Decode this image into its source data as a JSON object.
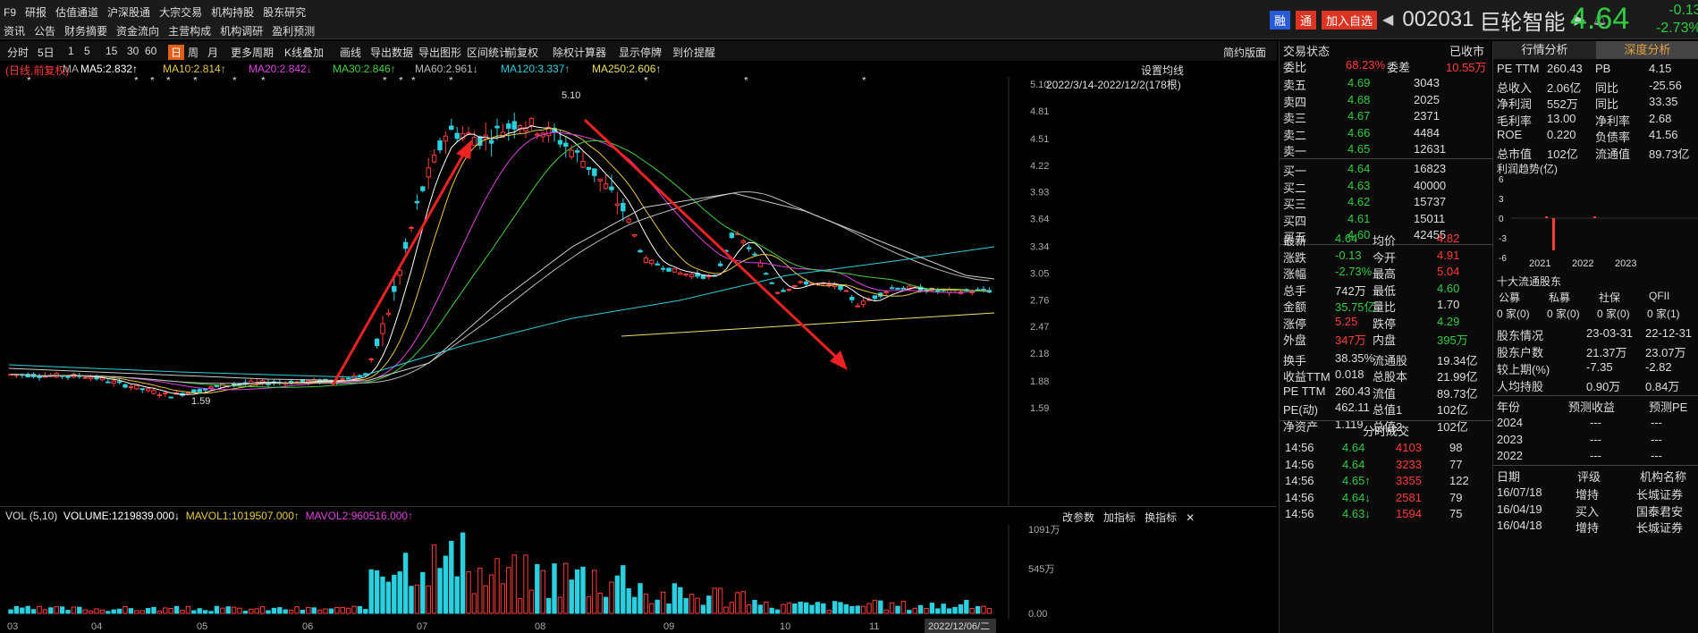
{
  "menu_row1": [
    "F9",
    "研报",
    "估值通道",
    "沪深股通",
    "大宗交易",
    "机构持股",
    "股东研究"
  ],
  "menu_row2": [
    "资讯",
    "公告",
    "财务摘要",
    "资金流向",
    "主营构成",
    "机构调研",
    "盈利预测"
  ],
  "stock": {
    "badge1": "融",
    "badge2": "通",
    "add": "加入自选",
    "code": "002031",
    "name": "巨轮智能",
    "price": "4.64",
    "chg": "-0.13",
    "pct": "-2.73%"
  },
  "toolbar": [
    "分时",
    "5日",
    "1",
    "5",
    "15",
    "30",
    "60",
    "日",
    "周",
    "月",
    "更多周期",
    "K线叠加",
    "画线",
    "导出数据",
    "导出图形",
    "区间统计",
    "前复权",
    "除权计算器",
    "显示停牌",
    "到价提醒"
  ],
  "toolbar_right": "简约版面",
  "legend": {
    "mode": "(日线,前复权)",
    "ma": "MA",
    "ma5": "MA5:2.832↑",
    "ma10": "MA10:2.814↑",
    "ma20": "MA20:2.842↓",
    "ma30": "MA30:2.846↑",
    "ma60": "MA60:2.961↓",
    "ma120": "MA120:3.337↑",
    "ma250": "MA250:2.606↑"
  },
  "settings": "设置均线",
  "range": "2022/3/14-2022/12/2(178根)",
  "price_axis": [
    "5.10",
    "4.81",
    "4.51",
    "4.22",
    "3.93",
    "3.64",
    "3.34",
    "3.05",
    "2.76",
    "2.47",
    "2.18",
    "1.88",
    "1.59"
  ],
  "high_label": "5.10",
  "low_label": "1.59",
  "month_axis": [
    "03",
    "04",
    "05",
    "06",
    "07",
    "08",
    "09",
    "10",
    "11"
  ],
  "date_label": "2022/12/06/二",
  "vol_legend": {
    "vol": "VOL (5,10)",
    "volume": "VOLUME:1219839.000↓",
    "mavol1": "MAVOL1:1019507.000↑",
    "mavol2": "MAVOL2:960516.000↑"
  },
  "vol_buttons": [
    "改参数",
    "加指标",
    "换指标"
  ],
  "vol_axis": [
    "1091万",
    "545万",
    "0.00"
  ],
  "trade_status": "交易状态",
  "closed": "已收市",
  "weibi": {
    "label": "委比",
    "v": "68.23%",
    "label2": "委差",
    "v2": "10.55万"
  },
  "asks": [
    [
      "卖五",
      "4.69",
      "3043"
    ],
    [
      "卖四",
      "4.68",
      "2025"
    ],
    [
      "卖三",
      "4.67",
      "2371"
    ],
    [
      "卖二",
      "4.66",
      "4484"
    ],
    [
      "卖一",
      "4.65",
      "12631"
    ]
  ],
  "bids": [
    [
      "买一",
      "4.64",
      "16823"
    ],
    [
      "买二",
      "4.63",
      "40000"
    ],
    [
      "买三",
      "4.62",
      "15737"
    ],
    [
      "买四",
      "4.61",
      "15011"
    ],
    [
      "买五",
      "4.60",
      "42455"
    ]
  ],
  "quote": [
    [
      "最新",
      "4.64",
      "均价",
      "4.82"
    ],
    [
      "涨跌",
      "-0.13",
      "今开",
      "4.91"
    ],
    [
      "涨幅",
      "-2.73%",
      "最高",
      "5.04"
    ],
    [
      "总手",
      "742万",
      "最低",
      "4.60"
    ],
    [
      "金额",
      "35.75亿",
      "量比",
      "1.70"
    ],
    [
      "涨停",
      "5.25",
      "跌停",
      "4.29"
    ],
    [
      "外盘",
      "347万",
      "内盘",
      "395万"
    ],
    [
      "换手",
      "38.35%",
      "流通股",
      "19.34亿"
    ],
    [
      "收益TTM",
      "0.018",
      "总股本",
      "21.99亿"
    ],
    [
      "PE TTM",
      "260.43",
      "流值",
      "89.73亿"
    ],
    [
      "PE(动)",
      "462.11",
      "总值1",
      "102亿"
    ],
    [
      "净资产",
      "1.119",
      "总值2",
      "102亿"
    ]
  ],
  "ticks_title": "分时成交",
  "ticks": [
    [
      "14:56",
      "4.64",
      "4103",
      "98"
    ],
    [
      "14:56",
      "4.64",
      "3233",
      "77"
    ],
    [
      "14:56",
      "4.65↑",
      "3355",
      "122"
    ],
    [
      "14:56",
      "4.64↓",
      "2581",
      "79"
    ],
    [
      "14:56",
      "4.63↓",
      "1594",
      "75"
    ]
  ],
  "tabs": {
    "a": "行情分析",
    "b": "深度分析"
  },
  "fin": [
    [
      "PE TTM",
      "260.43",
      "PB",
      "4.15"
    ],
    [
      "总收入",
      "2.06亿",
      "同比",
      "-25.56"
    ],
    [
      "净利润",
      "552万",
      "同比",
      "33.35"
    ],
    [
      "毛利率",
      "13.00",
      "净利率",
      "2.68"
    ],
    [
      "ROE",
      "0.220",
      "负债率",
      "41.56"
    ],
    [
      "总市值",
      "102亿",
      "流通值",
      "89.73亿"
    ]
  ],
  "profit_title": "利润趋势(亿)",
  "profit_axis": [
    "6",
    "3",
    "0",
    "-3",
    "-6"
  ],
  "profit_years": [
    "2021",
    "2022",
    "2023"
  ],
  "holders_title": "十大流通股东",
  "holders_hdr": [
    "公募",
    "私募",
    "社保",
    "QFII"
  ],
  "holders_val": [
    "0 家(0)",
    "0 家(0)",
    "0 家(0)",
    "0 家(1)"
  ],
  "sh": [
    [
      "股东情况",
      "23-03-31",
      "22-12-31"
    ],
    [
      "股东户数",
      "21.37万",
      "23.07万"
    ],
    [
      "较上期(%)",
      "-7.35",
      "-2.82"
    ],
    [
      "人均持股",
      "0.90万",
      "0.84万"
    ]
  ],
  "forecast_hdr": [
    "年份",
    "预测收益",
    "预测PE"
  ],
  "forecast": [
    [
      "2024",
      "---",
      "---"
    ],
    [
      "2023",
      "---",
      "---"
    ],
    [
      "2022",
      "---",
      "---"
    ]
  ],
  "rating_hdr": [
    "日期",
    "评级",
    "机构名称"
  ],
  "ratings": [
    [
      "16/07/18",
      "增持",
      "长城证券"
    ],
    [
      "16/04/19",
      "买入",
      "国泰君安"
    ],
    [
      "16/04/18",
      "增持",
      "长城证券"
    ]
  ]
}
